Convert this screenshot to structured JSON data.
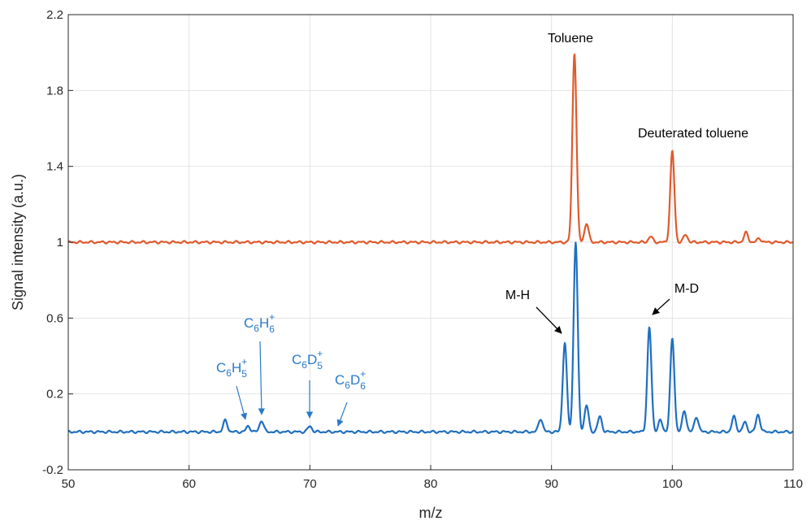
{
  "chart_data": {
    "type": "line",
    "xlabel": "m/z",
    "ylabel": "Signal intensity (a.u.)",
    "xlim": [
      50,
      110
    ],
    "ylim": [
      -0.2,
      2.2
    ],
    "xticks": [
      "50",
      "60",
      "70",
      "80",
      "90",
      "100",
      "110"
    ],
    "yticks": [
      "-0.2",
      "0.2",
      "0.6",
      "1",
      "1.4",
      "1.8",
      "2.2"
    ],
    "grid": true,
    "series": [
      {
        "color": "#e05a2b",
        "baseline": 1.0,
        "peaks": [
          {
            "x": 91.9,
            "y": 2.0
          },
          {
            "x": 92.9,
            "y": 1.1
          },
          {
            "x": 98.2,
            "y": 1.03
          },
          {
            "x": 100.0,
            "y": 1.48
          },
          {
            "x": 101.1,
            "y": 1.04
          },
          {
            "x": 106.1,
            "y": 1.05
          },
          {
            "x": 107.2,
            "y": 1.02
          }
        ]
      },
      {
        "color": "#1f6fbf",
        "baseline": 0.0,
        "peaks": [
          {
            "x": 63.0,
            "y": 0.06
          },
          {
            "x": 64.9,
            "y": 0.03
          },
          {
            "x": 66.0,
            "y": 0.06
          },
          {
            "x": 70.0,
            "y": 0.03
          },
          {
            "x": 89.1,
            "y": 0.07
          },
          {
            "x": 91.1,
            "y": 0.47
          },
          {
            "x": 92.0,
            "y": 1.0
          },
          {
            "x": 92.9,
            "y": 0.14
          },
          {
            "x": 94.0,
            "y": 0.08
          },
          {
            "x": 98.1,
            "y": 0.55
          },
          {
            "x": 99.0,
            "y": 0.06
          },
          {
            "x": 100.0,
            "y": 0.49
          },
          {
            "x": 101.0,
            "y": 0.11
          },
          {
            "x": 102.0,
            "y": 0.08
          },
          {
            "x": 105.1,
            "y": 0.08
          },
          {
            "x": 106.0,
            "y": 0.05
          },
          {
            "x": 107.1,
            "y": 0.09
          }
        ]
      }
    ],
    "annotations": {
      "toluene": "Toluene",
      "deuterated": "Deuterated toluene",
      "mh": "M-H",
      "md": "M-D",
      "c6h5": {
        "base1": "C",
        "sub1": "6",
        "base2": "H",
        "sup": "+",
        "sub2": "5"
      },
      "c6h6": {
        "base1": "C",
        "sub1": "6",
        "base2": "H",
        "sup": "+",
        "sub2": "6"
      },
      "c6d5": {
        "base1": "C",
        "sub1": "6",
        "base2": "D",
        "sup": "+",
        "sub2": "5"
      },
      "c6d6": {
        "base1": "C",
        "sub1": "6",
        "base2": "D",
        "sup": "+",
        "sub2": "6"
      }
    }
  }
}
